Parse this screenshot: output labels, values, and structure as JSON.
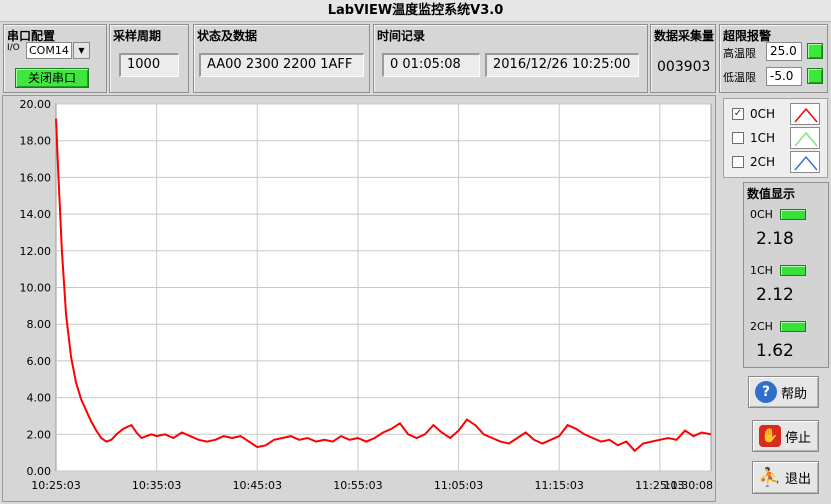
{
  "window": {
    "title": "LabVIEW温度监控系统V3.0"
  },
  "serial": {
    "title": "串口配置",
    "io_prefix": "I/O",
    "port": "COM14",
    "close_button": "关闭串口"
  },
  "sampling": {
    "title": "采样周期",
    "period": "1000"
  },
  "status": {
    "title": "状态及数据",
    "data": "AA00 2300 2200 1AFF"
  },
  "time": {
    "title": "时间记录",
    "elapsed": "0  01:05:08",
    "datetime": "2016/12/26 10:25:00"
  },
  "count": {
    "title": "数据采集量",
    "value": "003903"
  },
  "alarm": {
    "title": "超限报警",
    "high_label": "高温限",
    "high_value": "25.0",
    "low_label": "低温限",
    "low_value": "-5.0"
  },
  "legend": [
    {
      "label": "0CH",
      "checked": true,
      "color": "#ff0000"
    },
    {
      "label": "1CH",
      "checked": false,
      "color": "#7fe37f"
    },
    {
      "label": "2CH",
      "checked": false,
      "color": "#3a6fd8"
    }
  ],
  "values_panel": {
    "title": "数值显示",
    "channels": [
      {
        "label": "0CH",
        "value": "2.18"
      },
      {
        "label": "1CH",
        "value": "2.12"
      },
      {
        "label": "2CH",
        "value": "1.62"
      }
    ]
  },
  "buttons": {
    "help": "帮助",
    "stop": "停止",
    "exit": "退出"
  },
  "colors": {
    "led_green": "#39e039",
    "series_red": "#ff0000"
  },
  "chart_data": {
    "type": "line",
    "ylim": [
      0,
      20
    ],
    "y_ticks": [
      "20.00",
      "18.00",
      "16.00",
      "14.00",
      "12.00",
      "10.00",
      "8.00",
      "6.00",
      "4.00",
      "2.00",
      "0.00"
    ],
    "x_ticks": [
      "10:25:03",
      "10:35:03",
      "10:45:03",
      "10:55:03",
      "11:05:03",
      "11:15:03",
      "11:25:03",
      "11:30:08"
    ],
    "xlim_seconds": [
      0,
      3905
    ],
    "grid": true,
    "series": [
      {
        "color": "#ff0000",
        "x_seconds": [
          0,
          15,
          35,
          60,
          90,
          120,
          150,
          180,
          210,
          240,
          270,
          300,
          330,
          360,
          400,
          450,
          480,
          510,
          540,
          570,
          600,
          650,
          700,
          750,
          800,
          850,
          900,
          950,
          1000,
          1050,
          1100,
          1150,
          1200,
          1250,
          1300,
          1350,
          1400,
          1450,
          1500,
          1550,
          1600,
          1650,
          1700,
          1750,
          1800,
          1850,
          1900,
          1950,
          2000,
          2050,
          2100,
          2150,
          2200,
          2250,
          2300,
          2350,
          2400,
          2450,
          2500,
          2550,
          2600,
          2650,
          2700,
          2750,
          2800,
          2850,
          2900,
          2950,
          3000,
          3050,
          3100,
          3150,
          3200,
          3250,
          3300,
          3350,
          3400,
          3450,
          3500,
          3550,
          3600,
          3650,
          3700,
          3750,
          3800,
          3850,
          3905
        ],
        "values": [
          19.2,
          16.0,
          12.0,
          8.5,
          6.2,
          4.8,
          3.9,
          3.3,
          2.7,
          2.2,
          1.8,
          1.6,
          1.7,
          2.0,
          2.3,
          2.5,
          2.1,
          1.8,
          1.9,
          2.0,
          1.9,
          2.0,
          1.8,
          2.1,
          1.9,
          1.7,
          1.6,
          1.7,
          1.9,
          1.8,
          1.9,
          1.6,
          1.3,
          1.4,
          1.7,
          1.8,
          1.9,
          1.7,
          1.8,
          1.6,
          1.7,
          1.6,
          1.9,
          1.7,
          1.8,
          1.6,
          1.8,
          2.1,
          2.3,
          2.6,
          2.0,
          1.8,
          2.0,
          2.5,
          2.1,
          1.8,
          2.2,
          2.8,
          2.5,
          2.0,
          1.8,
          1.6,
          1.5,
          1.8,
          2.1,
          1.7,
          1.5,
          1.7,
          1.9,
          2.5,
          2.3,
          2.0,
          1.8,
          1.6,
          1.7,
          1.4,
          1.6,
          1.1,
          1.5,
          1.6,
          1.7,
          1.8,
          1.7,
          2.2,
          1.9,
          2.1,
          2.0
        ]
      }
    ]
  }
}
